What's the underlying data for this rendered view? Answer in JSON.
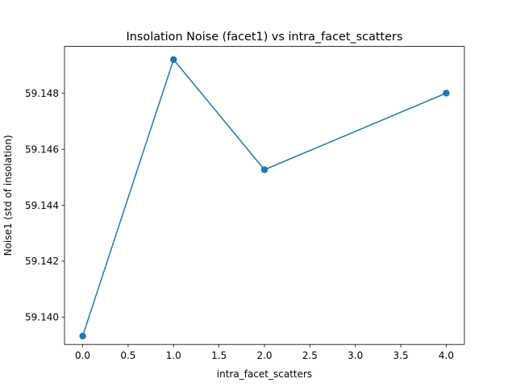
{
  "chart_data": {
    "type": "line",
    "title": "Insolation Noise (facet1) vs intra_facet_scatters",
    "xlabel": "intra_facet_scatters",
    "ylabel": "Noise1 (std of insolation)",
    "x": [
      0,
      1,
      2,
      4
    ],
    "series": [
      {
        "values": [
          59.13932,
          59.14921,
          59.14527,
          59.14801
        ]
      }
    ],
    "xlim": [
      -0.2,
      4.2
    ],
    "ylim": [
      59.13902,
      59.14968
    ],
    "xticks": [
      0.0,
      0.5,
      1.0,
      1.5,
      2.0,
      2.5,
      3.0,
      3.5,
      4.0
    ],
    "xtick_labels": [
      "0.0",
      "0.5",
      "1.0",
      "1.5",
      "2.0",
      "2.5",
      "3.0",
      "3.5",
      "4.0"
    ],
    "yticks": [
      59.14,
      59.142,
      59.144,
      59.146,
      59.148
    ],
    "ytick_labels": [
      "59.140",
      "59.142",
      "59.144",
      "59.146",
      "59.148"
    ],
    "grid": false,
    "colors": {
      "line": "#1f77b4",
      "axes": "#000000"
    }
  }
}
